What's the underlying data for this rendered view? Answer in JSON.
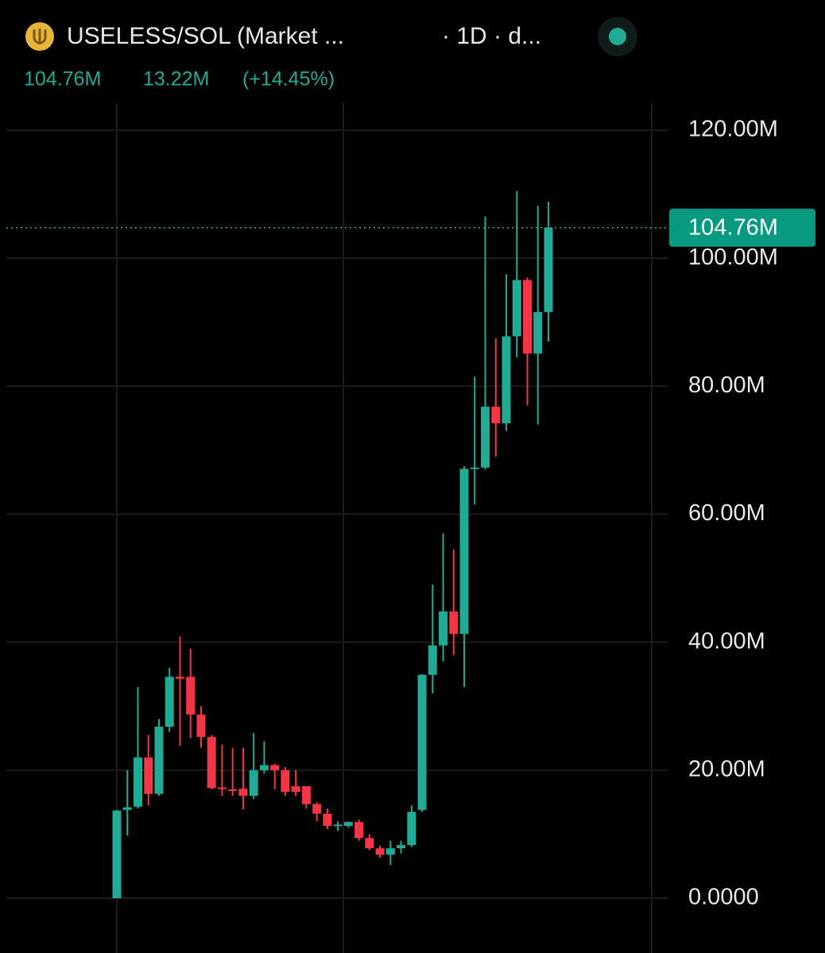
{
  "chart_data": {
    "type": "candlestick",
    "title": "USELESS/SOL (Market ...",
    "subtitle": "· 1D · d...",
    "legend_values": [
      "104.76M",
      "13.22M",
      "(+14.45%)"
    ],
    "up_color": "#22ab94",
    "down_color": "#f23645",
    "grid": true,
    "ylim": [
      -2,
      130
    ],
    "yticks": [
      {
        "value": 0,
        "label": "0.0000"
      },
      {
        "value": 20,
        "label": "20.00M"
      },
      {
        "value": 40,
        "label": "40.00M"
      },
      {
        "value": 60,
        "label": "60.00M"
      },
      {
        "value": 80,
        "label": "80.00M"
      },
      {
        "value": 100,
        "label": "100.00M"
      },
      {
        "value": 120,
        "label": "120.00M"
      }
    ],
    "last_price": {
      "value": 104.76,
      "label": "104.76M"
    },
    "open": [
      0,
      13.8,
      14.3,
      22,
      16.3,
      26.8,
      34.6,
      34.6,
      28.7,
      25.2,
      17.3,
      17,
      17.1,
      16,
      20,
      20.8,
      20,
      17.5,
      17.5,
      14.7,
      13.2,
      11.3,
      11.3,
      11.9,
      9.4,
      7.8,
      6.8,
      7.8,
      8.3,
      13.8,
      34.9,
      39.5,
      44.8,
      41.3,
      67.1,
      67.3,
      76.8,
      74.2,
      87.8,
      96.6,
      85.1,
      91.6
    ],
    "high": [
      13.8,
      20,
      33,
      25.5,
      28,
      36,
      40.9,
      39,
      30,
      25.5,
      24,
      23.5,
      23.5,
      25.8,
      24.5,
      21,
      20.5,
      20,
      17.5,
      15,
      14,
      12,
      12,
      12.3,
      10,
      8.2,
      9,
      9,
      14.5,
      35,
      49,
      57,
      54.5,
      67.5,
      81.5,
      106.5,
      87.5,
      97.5,
      110.5,
      97,
      108.2,
      108.8
    ],
    "low": [
      0,
      9.8,
      14,
      14.5,
      16,
      26,
      23.8,
      25,
      23.5,
      17,
      16,
      16,
      13.9,
      15.5,
      19.5,
      17,
      16,
      16,
      14,
      12,
      10.8,
      10.5,
      11,
      9,
      7.5,
      6.3,
      5.2,
      7,
      8,
      13.5,
      32,
      37,
      38,
      33,
      61.5,
      67,
      69,
      73,
      84.5,
      77,
      74,
      87
    ],
    "close": [
      13.7,
      14.2,
      22,
      16.3,
      26.8,
      34.6,
      34.3,
      28.7,
      25.2,
      17.2,
      17.1,
      16.8,
      16,
      20,
      20.8,
      20,
      16.6,
      16.6,
      14.7,
      13.2,
      11.3,
      11.5,
      11.9,
      9.4,
      7.8,
      6.8,
      7.8,
      8.3,
      13.5,
      34.9,
      39.5,
      44.8,
      41.3,
      67.1,
      67.3,
      76.8,
      74.2,
      87.8,
      96.6,
      85.1,
      91.6,
      104.76
    ]
  }
}
